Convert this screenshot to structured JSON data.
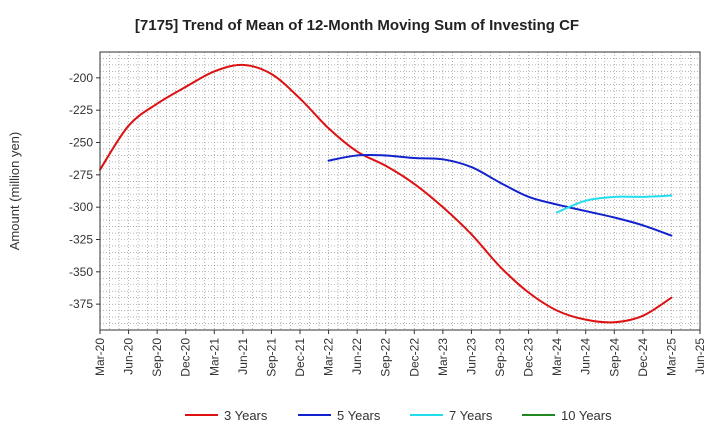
{
  "chart_data": {
    "type": "line",
    "title": "[7175]  Trend of Mean of 12-Month Moving Sum of Investing CF",
    "xlabel": "",
    "ylabel": "Amount (million yen)",
    "ylim": [
      -395,
      -180
    ],
    "yticks": [
      -200,
      -225,
      -250,
      -275,
      -300,
      -325,
      -350,
      -375
    ],
    "xticks": [
      "Mar-20",
      "Jun-20",
      "Sep-20",
      "Dec-20",
      "Mar-21",
      "Jun-21",
      "Sep-21",
      "Dec-21",
      "Mar-22",
      "Jun-22",
      "Sep-22",
      "Dec-22",
      "Mar-23",
      "Jun-23",
      "Sep-23",
      "Dec-23",
      "Mar-24",
      "Jun-24",
      "Sep-24",
      "Dec-24",
      "Mar-25",
      "Jun-25"
    ],
    "grid": true,
    "legend_position": "bottom",
    "series": [
      {
        "name": "3 Years",
        "color": "#dd1111",
        "x": [
          "Mar-20",
          "Jun-20",
          "Sep-20",
          "Dec-20",
          "Mar-21",
          "Jun-21",
          "Sep-21",
          "Dec-21",
          "Mar-22",
          "Jun-22",
          "Sep-22",
          "Dec-22",
          "Mar-23",
          "Jun-23",
          "Sep-23",
          "Dec-23",
          "Mar-24",
          "Jun-24",
          "Sep-24",
          "Dec-24",
          "Mar-25"
        ],
        "values": [
          -271,
          -237,
          -220,
          -207,
          -195,
          -190,
          -197,
          -216,
          -239,
          -257,
          -268,
          -282,
          -300,
          -321,
          -346,
          -366,
          -380,
          -387,
          -389,
          -384,
          -370
        ]
      },
      {
        "name": "5 Years",
        "color": "#1122cc",
        "x": [
          "Mar-22",
          "Jun-22",
          "Sep-22",
          "Dec-22",
          "Mar-23",
          "Jun-23",
          "Sep-23",
          "Dec-23",
          "Mar-24",
          "Jun-24",
          "Sep-24",
          "Dec-24",
          "Mar-25"
        ],
        "values": [
          -264,
          -260,
          -260,
          -262,
          -263,
          -269,
          -281,
          -292,
          -298,
          -303,
          -308,
          -314,
          -322
        ]
      },
      {
        "name": "7 Years",
        "color": "#22ddee",
        "x": [
          "Mar-24",
          "Jun-24",
          "Sep-24",
          "Dec-24",
          "Mar-25"
        ],
        "values": [
          -304,
          -295,
          -292,
          -292,
          -291
        ]
      },
      {
        "name": "10 Years",
        "color": "#228822",
        "x": [],
        "values": []
      }
    ]
  }
}
